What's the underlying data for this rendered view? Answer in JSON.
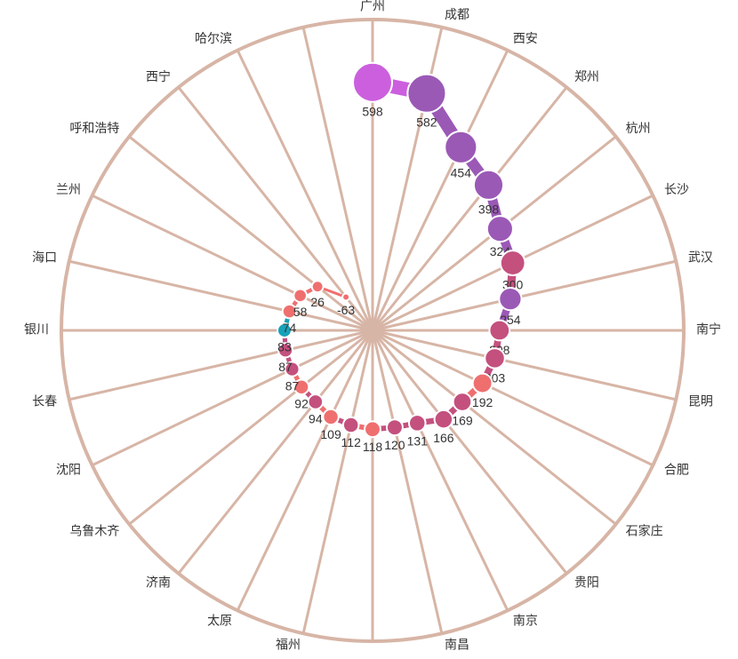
{
  "chart_data": {
    "type": "polar-line",
    "categories": [
      "广州",
      "成都",
      "西安",
      "郑州",
      "杭州",
      "长沙",
      "武汉",
      "南宁",
      "昆明",
      "合肥",
      "石家庄",
      "贵阳",
      "南京",
      "南昌",
      null,
      "福州",
      "太原",
      "济南",
      "乌鲁木齐",
      "沈阳",
      "长春",
      "银川",
      "海口",
      "兰州",
      "呼和浩特",
      "西宁",
      "哈尔滨",
      null
    ],
    "values": [
      598,
      582,
      454,
      398,
      324,
      300,
      254,
      208,
      203,
      192,
      169,
      166,
      131,
      120,
      118,
      112,
      109,
      94,
      92,
      87,
      87,
      83,
      74,
      58,
      26,
      -63,
      null,
      null
    ],
    "colors": [
      "#cc5fde",
      "#9b59b6",
      "#9b59b6",
      "#9b59b6",
      "#9b59b6",
      "#c4507e",
      "#9b59b6",
      "#c4507e",
      "#c4507e",
      "#ef6f6f",
      "#c4507e",
      "#c4507e",
      "#c4507e",
      "#c4507e",
      "#ef6f6f",
      "#c4507e",
      "#ef6f6f",
      "#c4507e",
      "#ef6f6f",
      "#c4507e",
      "#c4507e",
      "#17a2b8",
      "#ef6f6f",
      "#ef6f6f",
      "#ef6f6f",
      "#ef6f6f",
      null,
      null
    ],
    "rlim": [
      -200,
      800
    ],
    "axis_color": "#d7b5a6"
  }
}
